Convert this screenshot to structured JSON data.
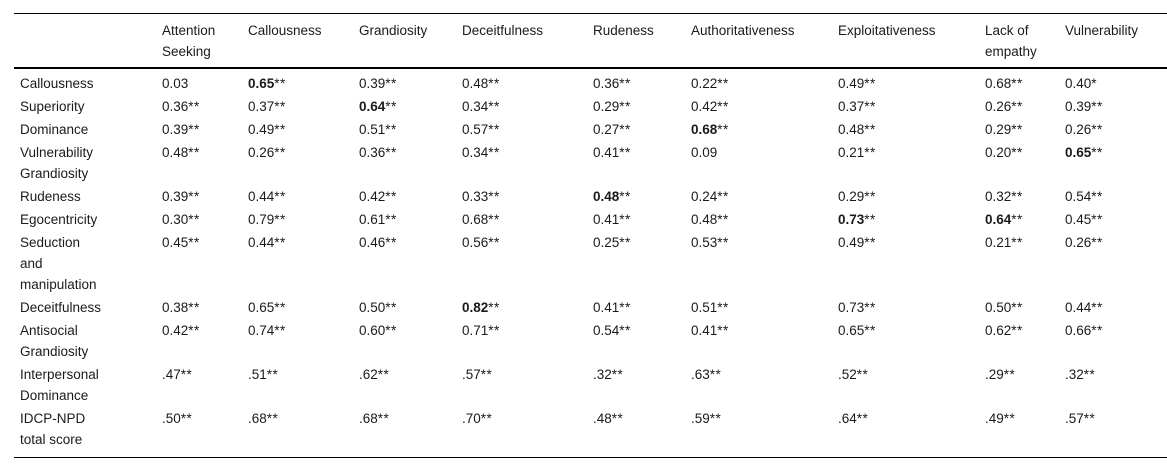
{
  "table": {
    "columns": [
      "Attention\nSeeking",
      "Callousness",
      "Grandiosity",
      "Deceitfulness",
      "Rudeness",
      "Authoritativeness",
      "Exploitativeness",
      "Lack of\nempathy",
      "Vulnerability"
    ],
    "rows": [
      {
        "label": "Callousness",
        "cells": [
          {
            "v": "0.03",
            "s": "",
            "b": false
          },
          {
            "v": "0.65",
            "s": "**",
            "b": true
          },
          {
            "v": "0.39",
            "s": "**",
            "b": false
          },
          {
            "v": "0.48",
            "s": "**",
            "b": false
          },
          {
            "v": "0.36",
            "s": "**",
            "b": false
          },
          {
            "v": "0.22",
            "s": "**",
            "b": false
          },
          {
            "v": "0.49",
            "s": "**",
            "b": false
          },
          {
            "v": "0.68",
            "s": "**",
            "b": false
          },
          {
            "v": "0.40",
            "s": "*",
            "b": false
          }
        ]
      },
      {
        "label": "Superiority",
        "cells": [
          {
            "v": "0.36",
            "s": "**",
            "b": false
          },
          {
            "v": "0.37",
            "s": "**",
            "b": false
          },
          {
            "v": "0.64",
            "s": "**",
            "b": true
          },
          {
            "v": "0.34",
            "s": "**",
            "b": false
          },
          {
            "v": "0.29",
            "s": "**",
            "b": false
          },
          {
            "v": "0.42",
            "s": "**",
            "b": false
          },
          {
            "v": "0.37",
            "s": "**",
            "b": false
          },
          {
            "v": "0.26",
            "s": "**",
            "b": false
          },
          {
            "v": "0.39",
            "s": "**",
            "b": false
          }
        ]
      },
      {
        "label": "Dominance",
        "cells": [
          {
            "v": "0.39",
            "s": "**",
            "b": false
          },
          {
            "v": "0.49",
            "s": "**",
            "b": false
          },
          {
            "v": "0.51",
            "s": "**",
            "b": false
          },
          {
            "v": "0.57",
            "s": "**",
            "b": false
          },
          {
            "v": "0.27",
            "s": "**",
            "b": false
          },
          {
            "v": "0.68",
            "s": "**",
            "b": true
          },
          {
            "v": "0.48",
            "s": "**",
            "b": false
          },
          {
            "v": "0.29",
            "s": "**",
            "b": false
          },
          {
            "v": "0.26",
            "s": "**",
            "b": false
          }
        ]
      },
      {
        "label": "Vulnerability\nGrandiosity",
        "cells": [
          {
            "v": "0.48",
            "s": "**",
            "b": false
          },
          {
            "v": "0.26",
            "s": "**",
            "b": false
          },
          {
            "v": "0.36",
            "s": "**",
            "b": false
          },
          {
            "v": "0.34",
            "s": "**",
            "b": false
          },
          {
            "v": "0.41",
            "s": "**",
            "b": false
          },
          {
            "v": "0.09",
            "s": "",
            "b": false
          },
          {
            "v": "0.21",
            "s": "**",
            "b": false
          },
          {
            "v": "0.20",
            "s": "**",
            "b": false
          },
          {
            "v": "0.65",
            "s": "**",
            "b": true
          }
        ]
      },
      {
        "label": "Rudeness",
        "cells": [
          {
            "v": "0.39",
            "s": "**",
            "b": false
          },
          {
            "v": "0.44",
            "s": "**",
            "b": false
          },
          {
            "v": "0.42",
            "s": "**",
            "b": false
          },
          {
            "v": "0.33",
            "s": "**",
            "b": false
          },
          {
            "v": "0.48",
            "s": "**",
            "b": true
          },
          {
            "v": "0.24",
            "s": "**",
            "b": false
          },
          {
            "v": "0.29",
            "s": "**",
            "b": false
          },
          {
            "v": "0.32",
            "s": "**",
            "b": false
          },
          {
            "v": "0.54",
            "s": "**",
            "b": false
          }
        ]
      },
      {
        "label": "Egocentricity",
        "cells": [
          {
            "v": "0.30",
            "s": "**",
            "b": false
          },
          {
            "v": "0.79",
            "s": "**",
            "b": false
          },
          {
            "v": "0.61",
            "s": "**",
            "b": false
          },
          {
            "v": "0.68",
            "s": "**",
            "b": false
          },
          {
            "v": "0.41",
            "s": "**",
            "b": false
          },
          {
            "v": "0.48",
            "s": "**",
            "b": false
          },
          {
            "v": "0.73",
            "s": "**",
            "b": true
          },
          {
            "v": "0.64",
            "s": "**",
            "b": true
          },
          {
            "v": "0.45",
            "s": "**",
            "b": false
          }
        ]
      },
      {
        "label": "Seduction\nand\nmanipulation",
        "cells": [
          {
            "v": "0.45",
            "s": "**",
            "b": false
          },
          {
            "v": "0.44",
            "s": "**",
            "b": false
          },
          {
            "v": "0.46",
            "s": "**",
            "b": false
          },
          {
            "v": "0.56",
            "s": "**",
            "b": false
          },
          {
            "v": "0.25",
            "s": "**",
            "b": false
          },
          {
            "v": "0.53",
            "s": "**",
            "b": false
          },
          {
            "v": "0.49",
            "s": "**",
            "b": false
          },
          {
            "v": "0.21",
            "s": "**",
            "b": false
          },
          {
            "v": "0.26",
            "s": "**",
            "b": false
          }
        ]
      },
      {
        "label": "Deceitfulness",
        "cells": [
          {
            "v": "0.38",
            "s": "**",
            "b": false
          },
          {
            "v": "0.65",
            "s": "**",
            "b": false
          },
          {
            "v": "0.50",
            "s": "**",
            "b": false
          },
          {
            "v": "0.82",
            "s": "**",
            "b": true
          },
          {
            "v": "0.41",
            "s": "**",
            "b": false
          },
          {
            "v": "0.51",
            "s": "**",
            "b": false
          },
          {
            "v": "0.73",
            "s": "**",
            "b": false
          },
          {
            "v": "0.50",
            "s": "**",
            "b": false
          },
          {
            "v": "0.44",
            "s": "**",
            "b": false
          }
        ]
      },
      {
        "label": "Antisocial\nGrandiosity",
        "cells": [
          {
            "v": "0.42",
            "s": "**",
            "b": false
          },
          {
            "v": "0.74",
            "s": "**",
            "b": false
          },
          {
            "v": "0.60",
            "s": "**",
            "b": false
          },
          {
            "v": "0.71",
            "s": "**",
            "b": false
          },
          {
            "v": "0.54",
            "s": "**",
            "b": false
          },
          {
            "v": "0.41",
            "s": "**",
            "b": false
          },
          {
            "v": "0.65",
            "s": "**",
            "b": false
          },
          {
            "v": "0.62",
            "s": "**",
            "b": false
          },
          {
            "v": "0.66",
            "s": "**",
            "b": false
          }
        ]
      },
      {
        "label": "Interpersonal\nDominance",
        "cells": [
          {
            "v": ".47",
            "s": "**",
            "b": false
          },
          {
            "v": ".51",
            "s": "**",
            "b": false
          },
          {
            "v": ".62",
            "s": "**",
            "b": false
          },
          {
            "v": ".57",
            "s": "**",
            "b": false
          },
          {
            "v": ".32",
            "s": "**",
            "b": false
          },
          {
            "v": ".63",
            "s": "**",
            "b": false
          },
          {
            "v": ".52",
            "s": "**",
            "b": false
          },
          {
            "v": ".29",
            "s": "**",
            "b": false
          },
          {
            "v": ".32",
            "s": "**",
            "b": false
          }
        ]
      },
      {
        "label": "IDCP-NPD\ntotal score",
        "cells": [
          {
            "v": ".50",
            "s": "**",
            "b": false
          },
          {
            "v": ".68",
            "s": "**",
            "b": false
          },
          {
            "v": ".68",
            "s": "**",
            "b": false
          },
          {
            "v": ".70",
            "s": "**",
            "b": false
          },
          {
            "v": ".48",
            "s": "**",
            "b": false
          },
          {
            "v": ".59",
            "s": "**",
            "b": false
          },
          {
            "v": ".64",
            "s": "**",
            "b": false
          },
          {
            "v": ".49",
            "s": "**",
            "b": false
          },
          {
            "v": ".57",
            "s": "**",
            "b": false
          }
        ]
      }
    ]
  },
  "colors": {
    "background": "#ffffff",
    "text": "#1a1a1a",
    "rule": "#000000"
  }
}
